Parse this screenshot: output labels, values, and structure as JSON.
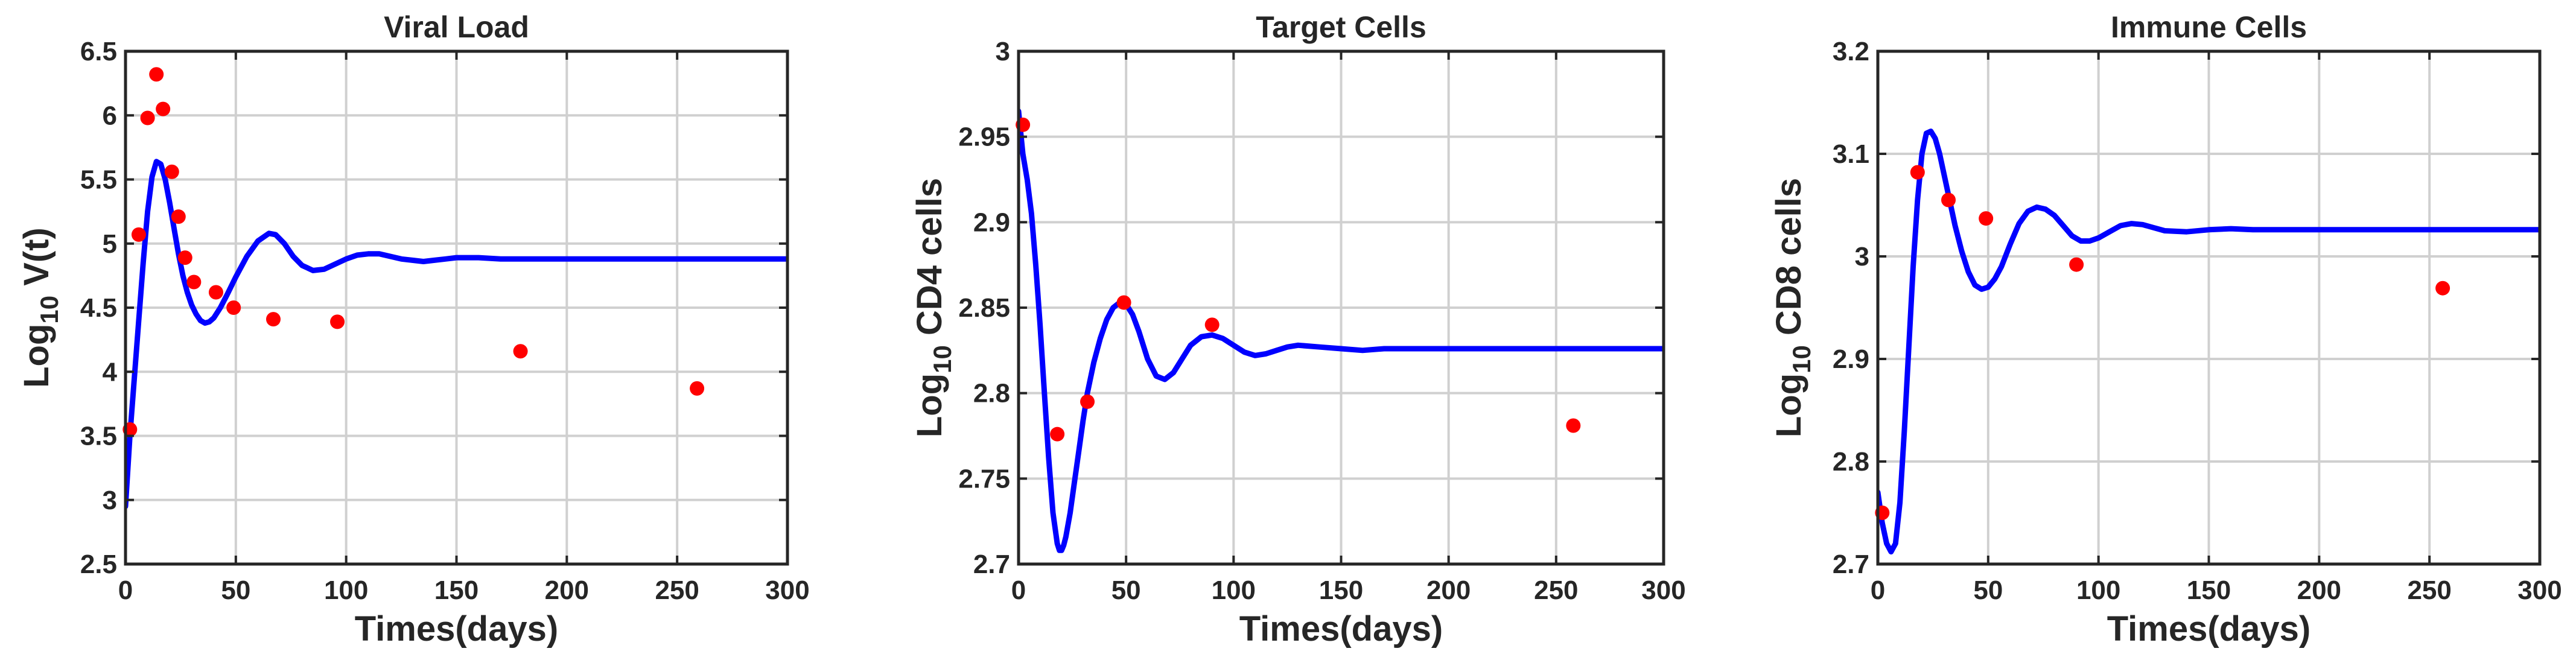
{
  "chart_data": [
    {
      "type": "line",
      "title": "Viral Load",
      "xlabel": "Times(days)",
      "ylabel_prefix": "Log",
      "ylabel_sub": "10",
      "ylabel_suffix": "V(t)",
      "xlim": [
        0,
        300
      ],
      "ylim": [
        2.5,
        6.5
      ],
      "xticks": [
        0,
        50,
        100,
        150,
        200,
        250,
        300
      ],
      "yticks": [
        2.5,
        3,
        3.5,
        4,
        4.5,
        5,
        5.5,
        6,
        6.5
      ],
      "ytick_labels": [
        "2.5",
        "3",
        "3.5",
        "4",
        "4.5",
        "5",
        "5.5",
        "6",
        "6.5"
      ],
      "grid": true,
      "series": [
        {
          "kind": "line",
          "color": "#0000ff",
          "x": [
            0,
            2,
            4,
            6,
            8,
            10,
            12,
            14,
            16,
            18,
            20,
            22,
            24,
            26,
            28,
            30,
            32,
            34,
            36,
            38,
            40,
            43,
            46,
            50,
            55,
            60,
            65,
            68,
            72,
            76,
            80,
            85,
            90,
            95,
            100,
            105,
            110,
            115,
            120,
            125,
            130,
            135,
            140,
            145,
            150,
            160,
            170,
            180,
            200,
            220,
            240,
            260,
            280,
            300
          ],
          "y": [
            2.95,
            3.5,
            3.95,
            4.4,
            4.85,
            5.25,
            5.52,
            5.64,
            5.62,
            5.5,
            5.32,
            5.12,
            4.92,
            4.75,
            4.62,
            4.52,
            4.45,
            4.4,
            4.38,
            4.39,
            4.42,
            4.5,
            4.6,
            4.74,
            4.9,
            5.02,
            5.08,
            5.07,
            5.0,
            4.9,
            4.83,
            4.79,
            4.8,
            4.84,
            4.88,
            4.91,
            4.92,
            4.92,
            4.9,
            4.88,
            4.87,
            4.86,
            4.87,
            4.88,
            4.89,
            4.89,
            4.88,
            4.88,
            4.88,
            4.88,
            4.88,
            4.88,
            4.88,
            4.88
          ]
        },
        {
          "kind": "scatter",
          "color": "#ff0000",
          "x": [
            2,
            6,
            10,
            14,
            17,
            21,
            24,
            27,
            31,
            41,
            49,
            67,
            96,
            179,
            259
          ],
          "y": [
            3.55,
            5.07,
            5.98,
            6.32,
            6.05,
            5.56,
            5.21,
            4.89,
            4.7,
            4.62,
            4.5,
            4.41,
            4.39,
            4.16,
            3.87
          ]
        }
      ]
    },
    {
      "type": "line",
      "title": "Target Cells",
      "xlabel": "Times(days)",
      "ylabel_prefix": "Log",
      "ylabel_sub": "10",
      "ylabel_suffix": "CD4 cells",
      "xlim": [
        0,
        300
      ],
      "ylim": [
        2.7,
        3.0
      ],
      "xticks": [
        0,
        50,
        100,
        150,
        200,
        250,
        300
      ],
      "yticks": [
        2.7,
        2.75,
        2.8,
        2.85,
        2.9,
        2.95,
        3.0
      ],
      "ytick_labels": [
        "2.7",
        "2.75",
        "2.8",
        "2.85",
        "2.9",
        "2.95",
        "3"
      ],
      "grid": true,
      "series": [
        {
          "kind": "line",
          "color": "#0000ff",
          "x": [
            0,
            2,
            4,
            6,
            8,
            10,
            12,
            14,
            16,
            18,
            19,
            20,
            21,
            22,
            24,
            26,
            28,
            30,
            32,
            35,
            38,
            41,
            44,
            47,
            50,
            53,
            56,
            60,
            64,
            68,
            72,
            76,
            80,
            85,
            90,
            95,
            100,
            105,
            110,
            115,
            120,
            125,
            130,
            140,
            150,
            160,
            170,
            180,
            200,
            220,
            240,
            260,
            280,
            300
          ],
          "y": [
            2.965,
            2.94,
            2.925,
            2.905,
            2.875,
            2.84,
            2.8,
            2.762,
            2.73,
            2.712,
            2.708,
            2.708,
            2.711,
            2.716,
            2.73,
            2.748,
            2.766,
            2.784,
            2.8,
            2.818,
            2.832,
            2.843,
            2.85,
            2.853,
            2.852,
            2.846,
            2.836,
            2.82,
            2.81,
            2.808,
            2.812,
            2.82,
            2.828,
            2.833,
            2.834,
            2.832,
            2.828,
            2.824,
            2.822,
            2.823,
            2.825,
            2.827,
            2.828,
            2.827,
            2.826,
            2.825,
            2.826,
            2.826,
            2.826,
            2.826,
            2.826,
            2.826,
            2.826,
            2.826
          ]
        },
        {
          "kind": "scatter",
          "color": "#ff0000",
          "x": [
            2,
            18,
            32,
            49,
            90,
            258
          ],
          "y": [
            2.957,
            2.776,
            2.795,
            2.853,
            2.84,
            2.781
          ]
        }
      ]
    },
    {
      "type": "line",
      "title": "Immune Cells",
      "xlabel": "Times(days)",
      "ylabel_prefix": "Log",
      "ylabel_sub": "10",
      "ylabel_suffix": "CD8 cells",
      "xlim": [
        0,
        300
      ],
      "ylim": [
        2.7,
        3.2
      ],
      "xticks": [
        0,
        50,
        100,
        150,
        200,
        250,
        300
      ],
      "yticks": [
        2.7,
        2.8,
        2.9,
        3.0,
        3.1,
        3.2
      ],
      "ytick_labels": [
        "2.7",
        "2.8",
        "2.9",
        "3",
        "3.1",
        "3.2"
      ],
      "grid": true,
      "series": [
        {
          "kind": "line",
          "color": "#0000ff",
          "x": [
            0,
            2,
            4,
            6,
            8,
            10,
            12,
            14,
            16,
            18,
            20,
            22,
            24,
            26,
            28,
            30,
            32,
            35,
            38,
            41,
            44,
            47,
            50,
            53,
            56,
            60,
            64,
            68,
            72,
            76,
            80,
            84,
            88,
            92,
            96,
            100,
            105,
            110,
            115,
            120,
            125,
            130,
            140,
            150,
            160,
            170,
            180,
            200,
            220,
            240,
            260,
            280,
            300
          ],
          "y": [
            2.77,
            2.74,
            2.72,
            2.712,
            2.72,
            2.76,
            2.83,
            2.91,
            2.99,
            3.055,
            3.1,
            3.12,
            3.122,
            3.115,
            3.1,
            3.08,
            3.06,
            3.03,
            3.005,
            2.985,
            2.972,
            2.968,
            2.97,
            2.978,
            2.99,
            3.012,
            3.032,
            3.044,
            3.048,
            3.046,
            3.04,
            3.03,
            3.02,
            3.015,
            3.015,
            3.018,
            3.024,
            3.03,
            3.032,
            3.031,
            3.028,
            3.025,
            3.024,
            3.026,
            3.027,
            3.026,
            3.026,
            3.026,
            3.026,
            3.026,
            3.026,
            3.026,
            3.026
          ]
        },
        {
          "kind": "scatter",
          "color": "#ff0000",
          "x": [
            2,
            18,
            32,
            49,
            90,
            256
          ],
          "y": [
            2.75,
            3.082,
            3.055,
            3.037,
            2.992,
            2.969
          ]
        }
      ]
    }
  ]
}
